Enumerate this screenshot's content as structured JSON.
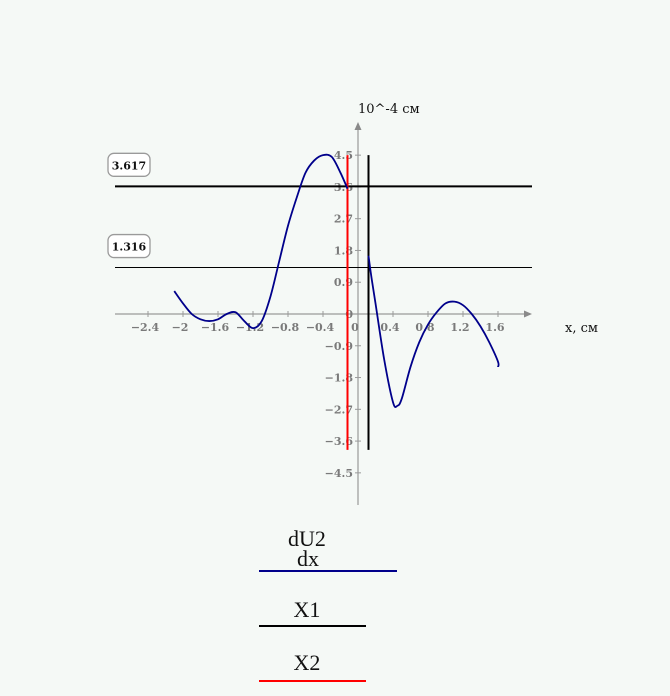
{
  "chart_data": {
    "type": "line",
    "title": "",
    "xlabel": "x, см",
    "ylabel": "10^-4 см",
    "xlim": [
      -2.8,
      2.0
    ],
    "ylim": [
      -5.5,
      5.5
    ],
    "x_ticks": [
      -2.4,
      -2,
      -1.6,
      -1.2,
      -0.8,
      -0.4,
      0,
      0.4,
      0.8,
      1.2,
      1.6
    ],
    "x_tick_labels": [
      "−2.4",
      "−2",
      "−1.6",
      "−1.2",
      "−0.8",
      "−0.4",
      "0",
      "0.4",
      "0.8",
      "1.2",
      "1.6"
    ],
    "y_ticks": [
      4.5,
      3.6,
      2.7,
      1.8,
      0.9,
      0,
      -0.9,
      -1.8,
      -2.7,
      -3.6,
      -4.5
    ],
    "y_tick_labels": [
      "4.5",
      "3.6",
      "2.7",
      "1.8",
      "0.9",
      "0",
      "−0.9",
      "−1.8",
      "−2.7",
      "−3.6",
      "−4.5"
    ],
    "series": [
      {
        "name": "dU2/dx",
        "color": "#00008b",
        "x": [
          -2.1,
          -2.0,
          -1.9,
          -1.8,
          -1.7,
          -1.6,
          -1.5,
          -1.4,
          -1.3,
          -1.2,
          -1.1,
          -1.0,
          -0.9,
          -0.8,
          -0.7,
          -0.6,
          -0.5,
          -0.4,
          -0.3,
          -0.2,
          -0.12
        ],
        "y": [
          0.65,
          0.3,
          0.0,
          -0.15,
          -0.2,
          -0.15,
          0.0,
          0.05,
          -0.2,
          -0.4,
          -0.2,
          0.5,
          1.5,
          2.5,
          3.3,
          4.0,
          4.35,
          4.5,
          4.45,
          4.0,
          3.55
        ]
      },
      {
        "name": "dU2/dx",
        "color": "#00008b",
        "x": [
          0.12,
          0.15,
          0.2,
          0.3,
          0.4,
          0.45,
          0.5,
          0.6,
          0.7,
          0.8,
          0.9,
          1.0,
          1.1,
          1.2,
          1.3,
          1.4,
          1.5,
          1.6,
          1.6
        ],
        "y": [
          1.65,
          1.1,
          0.3,
          -1.3,
          -2.5,
          -2.6,
          -2.4,
          -1.5,
          -0.8,
          -0.3,
          0.05,
          0.3,
          0.35,
          0.25,
          0.0,
          -0.35,
          -0.8,
          -1.35,
          -1.5
        ]
      }
    ],
    "vertical_markers": [
      {
        "name": "X1",
        "x": 0.12,
        "color": "#000000"
      },
      {
        "name": "X2",
        "x": -0.12,
        "color": "#ff0000"
      }
    ],
    "horizontal_markers": [
      {
        "value": 3.617,
        "label": "3.617",
        "color": "#000000"
      },
      {
        "value": 1.316,
        "label": "1.316",
        "color": "#000000"
      }
    ],
    "legend": [
      {
        "label_top": "dU2",
        "label_bottom": "dx",
        "color": "#00008b"
      },
      {
        "label_top": "X1",
        "label_bottom": "",
        "color": "#000000"
      },
      {
        "label_top": "X2",
        "label_bottom": "",
        "color": "#ff0000"
      }
    ],
    "legend_position": "bottom",
    "grid": false
  }
}
